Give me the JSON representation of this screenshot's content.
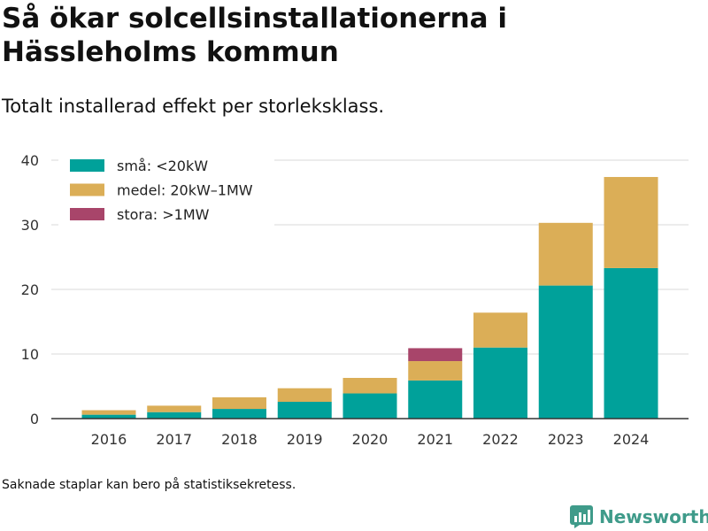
{
  "title": "Så ökar solcellsinstallationerna i Hässleholms kommun",
  "subtitle": "Totalt installerad effekt per storleksklass.",
  "footnote": "Saknade staplar kan bero på statistiksekretess.",
  "brand": {
    "name": "Newsworthy",
    "logo_icon": "bar-chart-icon"
  },
  "colors": {
    "small": "#00a19a",
    "medium": "#dbae57",
    "large": "#a8456a",
    "brand": "#3f9b8a"
  },
  "chart_data": {
    "type": "bar",
    "stacked": true,
    "categories": [
      "2016",
      "2017",
      "2018",
      "2019",
      "2020",
      "2021",
      "2022",
      "2023",
      "2024"
    ],
    "series": [
      {
        "name": "små: <20kW",
        "color": "#00a19a",
        "values": [
          0.6,
          1.0,
          1.5,
          2.6,
          3.9,
          5.9,
          11.0,
          20.6,
          23.3
        ]
      },
      {
        "name": "medel: 20kW–1MW",
        "color": "#dbae57",
        "values": [
          0.7,
          1.0,
          1.8,
          2.1,
          2.4,
          3.0,
          5.4,
          9.7,
          14.1
        ]
      },
      {
        "name": "stora: >1MW",
        "color": "#a8456a",
        "values": [
          0,
          0,
          0,
          0,
          0,
          2.0,
          0,
          0,
          0
        ]
      }
    ],
    "ylim": [
      0,
      40
    ],
    "yticks": [
      0,
      10,
      20,
      30,
      40
    ],
    "grid": true,
    "legend": "top-left",
    "xlabel": "",
    "ylabel": ""
  }
}
